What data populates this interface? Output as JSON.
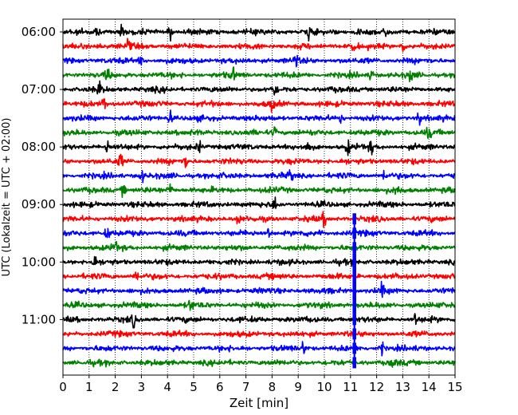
{
  "chart_data": {
    "type": "line",
    "xlabel": "Zeit  [min]",
    "ylabel": "UTC (Lokalzeit = UTC + 02:00)",
    "xlim": [
      0,
      15
    ],
    "x_ticks": [
      0,
      1,
      2,
      3,
      4,
      5,
      6,
      7,
      8,
      9,
      10,
      11,
      12,
      13,
      14,
      15
    ],
    "y_ticks": [
      "06:00",
      "07:00",
      "08:00",
      "09:00",
      "10:00",
      "11:00"
    ],
    "grid": "vertical dotted lines at each minute",
    "trace_interval_minutes": 15,
    "colors": [
      "#000000",
      "#ff0000",
      "#0000ff",
      "#008000"
    ],
    "series": [
      {
        "start": "06:00",
        "color_index": 0,
        "spikes": [
          1.3,
          2.25,
          4.1,
          9.4,
          11.3,
          12.3
        ]
      },
      {
        "start": "06:15",
        "color_index": 1,
        "spikes": [
          1.4,
          2.5,
          11.1,
          13.0
        ]
      },
      {
        "start": "06:30",
        "color_index": 2,
        "spikes": [
          3.0,
          8.9
        ]
      },
      {
        "start": "06:45",
        "color_index": 3,
        "spikes": [
          1.7,
          6.5,
          11.8,
          13.3
        ]
      },
      {
        "start": "07:00",
        "color_index": 0,
        "spikes": [
          1.4,
          8.1
        ]
      },
      {
        "start": "07:15",
        "color_index": 1,
        "spikes": [
          1.6,
          8.0
        ]
      },
      {
        "start": "07:30",
        "color_index": 2,
        "spikes": [
          4.1,
          10.6,
          13.6
        ]
      },
      {
        "start": "07:45",
        "color_index": 3,
        "spikes": [
          8.1,
          14.0
        ]
      },
      {
        "start": "08:00",
        "color_index": 0,
        "spikes": [
          1.7,
          5.2,
          9.4,
          10.9,
          11.8
        ]
      },
      {
        "start": "08:15",
        "color_index": 1,
        "spikes": [
          2.2,
          4.7
        ]
      },
      {
        "start": "08:30",
        "color_index": 2,
        "spikes": [
          3.0,
          8.7,
          12.3
        ]
      },
      {
        "start": "08:45",
        "color_index": 3,
        "spikes": [
          2.3,
          4.1,
          12.8
        ]
      },
      {
        "start": "09:00",
        "color_index": 0,
        "spikes": [
          8.1
        ]
      },
      {
        "start": "09:15",
        "color_index": 1,
        "spikes": [
          6.7,
          10.0
        ]
      },
      {
        "start": "09:30",
        "color_index": 2,
        "spikes": [
          1.7,
          7.9,
          9.8
        ]
      },
      {
        "start": "09:45",
        "color_index": 3,
        "spikes": [
          2.0
        ]
      },
      {
        "start": "10:00",
        "color_index": 0,
        "spikes": [
          1.2
        ]
      },
      {
        "start": "10:15",
        "color_index": 1,
        "spikes": [
          2.8
        ]
      },
      {
        "start": "10:30",
        "color_index": 2,
        "spikes": [
          12.2
        ]
      },
      {
        "start": "10:45",
        "color_index": 3,
        "spikes": [
          4.9
        ]
      },
      {
        "start": "11:00",
        "color_index": 0,
        "spikes": [
          2.7,
          13.5
        ]
      },
      {
        "start": "11:15",
        "color_index": 1,
        "spikes": []
      },
      {
        "start": "11:30",
        "color_index": 2,
        "spikes": [
          9.2,
          12.2
        ]
      },
      {
        "start": "11:45",
        "color_index": 3,
        "spikes": [
          12.6
        ]
      }
    ],
    "event": {
      "x_minute": 11.15,
      "from_start": "09:15",
      "to_start": "11:45"
    }
  }
}
